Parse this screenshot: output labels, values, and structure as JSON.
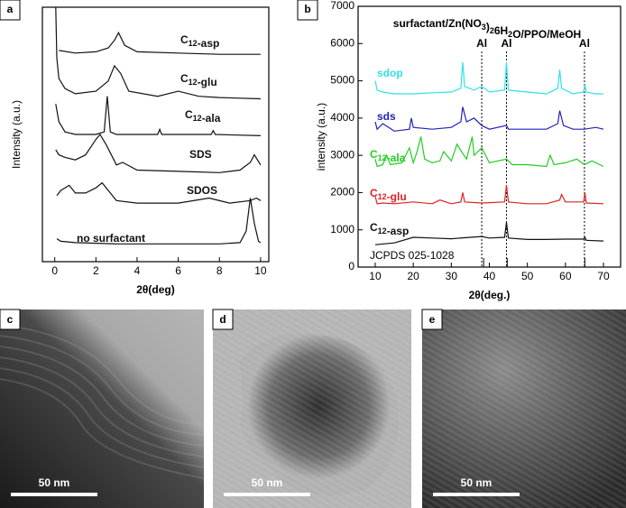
{
  "chart_data": [
    {
      "type": "line",
      "panel_label": "a",
      "x_label": "2θ(deg)",
      "y_label": "Intensity (a.u.)",
      "xlim": [
        -0.6,
        10.4
      ],
      "ylim": [
        0,
        100
      ],
      "xticks": [
        0,
        2,
        4,
        6,
        8,
        10
      ],
      "color": "#111111",
      "series": [
        {
          "name": "C12-asp",
          "x": [
            0.2,
            1,
            2,
            2.6,
            2.9,
            3.1,
            3.4,
            4,
            6,
            8,
            10
          ],
          "values": [
            83,
            82,
            82.5,
            84,
            87,
            90,
            85,
            82.5,
            82,
            81.5,
            81.5
          ]
        },
        {
          "name": "C12-glu",
          "x": [
            0.05,
            0.1,
            0.2,
            0.5,
            1,
            2,
            2.6,
            2.9,
            3.2,
            3.6,
            5,
            6,
            7,
            8,
            10
          ],
          "values": [
            100,
            80,
            72,
            68,
            66,
            67,
            71,
            77,
            74,
            67,
            65,
            67,
            65,
            64.5,
            64
          ]
        },
        {
          "name": "C12-ala",
          "x": [
            0.05,
            0.2,
            0.5,
            1,
            2,
            2.4,
            2.55,
            2.7,
            3,
            5,
            5.1,
            5.2,
            7.6,
            7.7,
            7.8,
            10
          ],
          "values": [
            62,
            55,
            51,
            50,
            50,
            51,
            65,
            51,
            50,
            50,
            52,
            50,
            50,
            51.5,
            50,
            49.5
          ]
        },
        {
          "name": "SDS",
          "x": [
            0.05,
            0.2,
            0.5,
            1,
            1.5,
            2,
            2.2,
            2.5,
            3,
            3.3,
            4,
            6,
            8,
            9,
            9.5,
            9.7,
            10
          ],
          "values": [
            44,
            42,
            41,
            40,
            42,
            48,
            50,
            46,
            38,
            39,
            36,
            35.5,
            35,
            36,
            39,
            42,
            38
          ]
        },
        {
          "name": "SDOS",
          "x": [
            0.1,
            0.3,
            0.7,
            1,
            1.5,
            2,
            2.3,
            2.7,
            3,
            4,
            6,
            7.5,
            8.5,
            9.5,
            9.8,
            10
          ],
          "values": [
            26,
            28,
            30,
            27,
            27,
            29,
            31,
            27,
            24,
            23,
            23,
            25,
            23,
            24,
            25,
            24
          ]
        },
        {
          "name": "no surfactant",
          "x": [
            0.1,
            0.3,
            1,
            3,
            5,
            8,
            9,
            9.3,
            9.5,
            9.7,
            9.9,
            10
          ],
          "values": [
            9,
            8,
            7.5,
            7,
            7,
            7,
            7.5,
            12,
            25,
            15,
            8,
            7.5
          ]
        }
      ]
    },
    {
      "type": "line",
      "panel_label": "b",
      "title": "surfactant/Zn(NO3)26H2O/PPO/MeOH",
      "x_label": "2θ(deg.)",
      "y_label": "intensity (a.u.)",
      "xlim": [
        5.5,
        74.5
      ],
      "ylim": [
        0,
        7000
      ],
      "xticks": [
        10,
        20,
        30,
        40,
        50,
        60,
        70
      ],
      "yticks": [
        0,
        1000,
        2000,
        3000,
        4000,
        5000,
        6000,
        7000
      ],
      "annotations": [
        {
          "x": 38,
          "label": "Al"
        },
        {
          "x": 44.5,
          "label": "Al"
        },
        {
          "x": 65,
          "label": "Al"
        }
      ],
      "reference": {
        "label": "JCPDS 025-1028",
        "x": [
          38.5,
          44.7,
          65.1
        ]
      },
      "series": [
        {
          "name": "sdop",
          "color": "#33e0e6",
          "x": [
            10,
            10.5,
            12,
            15,
            20,
            25,
            30,
            32.5,
            33,
            33.5,
            36,
            38,
            40,
            44,
            44.5,
            45,
            50,
            55,
            58,
            58.5,
            59,
            62,
            64.8,
            65.1,
            65.5,
            68,
            70
          ],
          "values": [
            5000,
            4750,
            4700,
            4650,
            4650,
            4680,
            4700,
            4800,
            5500,
            4850,
            4750,
            4850,
            4700,
            4750,
            5500,
            4750,
            4700,
            4650,
            4800,
            5300,
            4800,
            4650,
            4700,
            4900,
            4700,
            4650,
            4650
          ]
        },
        {
          "name": "sds",
          "color": "#2222bb",
          "x": [
            10,
            10.5,
            12,
            15,
            19,
            19.5,
            20,
            25,
            30,
            32.5,
            33,
            34,
            36,
            38,
            40,
            44.5,
            45,
            50,
            55,
            58,
            58.5,
            59.5,
            62,
            65,
            68,
            70
          ],
          "values": [
            3900,
            3700,
            3850,
            3650,
            3700,
            4000,
            3750,
            3700,
            3750,
            3900,
            4300,
            3900,
            4000,
            3800,
            3700,
            3800,
            3700,
            3700,
            3700,
            3850,
            4200,
            3800,
            3700,
            3700,
            3750,
            3700
          ]
        },
        {
          "name": "C12-ala",
          "color": "#22cc22",
          "x": [
            10,
            10.5,
            12,
            13,
            14,
            17,
            19,
            20,
            21,
            22,
            23,
            25,
            27,
            28,
            30,
            31.5,
            33,
            34,
            35.5,
            36,
            38,
            40,
            44.5,
            46,
            50,
            55,
            56,
            57,
            60,
            63,
            65,
            67,
            68,
            70
          ],
          "values": [
            2900,
            2700,
            2750,
            3000,
            2750,
            2800,
            3200,
            2800,
            3100,
            3500,
            2900,
            2800,
            2850,
            3100,
            2850,
            3300,
            3050,
            2900,
            3500,
            3000,
            3200,
            2800,
            2900,
            2750,
            2750,
            2700,
            3000,
            2750,
            2800,
            2900,
            2750,
            2850,
            2800,
            2700
          ]
        },
        {
          "name": "C12-glu",
          "color": "#dd2222",
          "x": [
            10,
            10.5,
            12,
            15,
            20,
            25,
            27,
            30,
            32.5,
            33,
            33.5,
            38,
            44,
            44.5,
            45,
            50,
            55,
            58.5,
            59,
            60,
            64.8,
            65.1,
            65.5,
            70
          ],
          "values": [
            1900,
            1700,
            1720,
            1700,
            1750,
            1700,
            1800,
            1700,
            1750,
            2000,
            1750,
            1720,
            1750,
            2200,
            1750,
            1700,
            1700,
            1800,
            1950,
            1750,
            1750,
            2000,
            1720,
            1700
          ]
        },
        {
          "name": "C12-asp",
          "color": "#111111",
          "x": [
            10,
            15,
            20,
            25,
            30,
            35,
            38,
            40,
            44,
            44.5,
            45,
            50,
            55,
            60,
            64.8,
            65.1,
            65.5,
            70
          ],
          "values": [
            600,
            650,
            800,
            780,
            760,
            800,
            820,
            780,
            800,
            1200,
            780,
            740,
            740,
            750,
            750,
            800,
            720,
            700
          ]
        }
      ]
    }
  ],
  "images": [
    {
      "label": "c",
      "scale_bar": "50 nm"
    },
    {
      "label": "d",
      "scale_bar": "50 nm"
    },
    {
      "label": "e",
      "scale_bar": "50 nm"
    }
  ]
}
